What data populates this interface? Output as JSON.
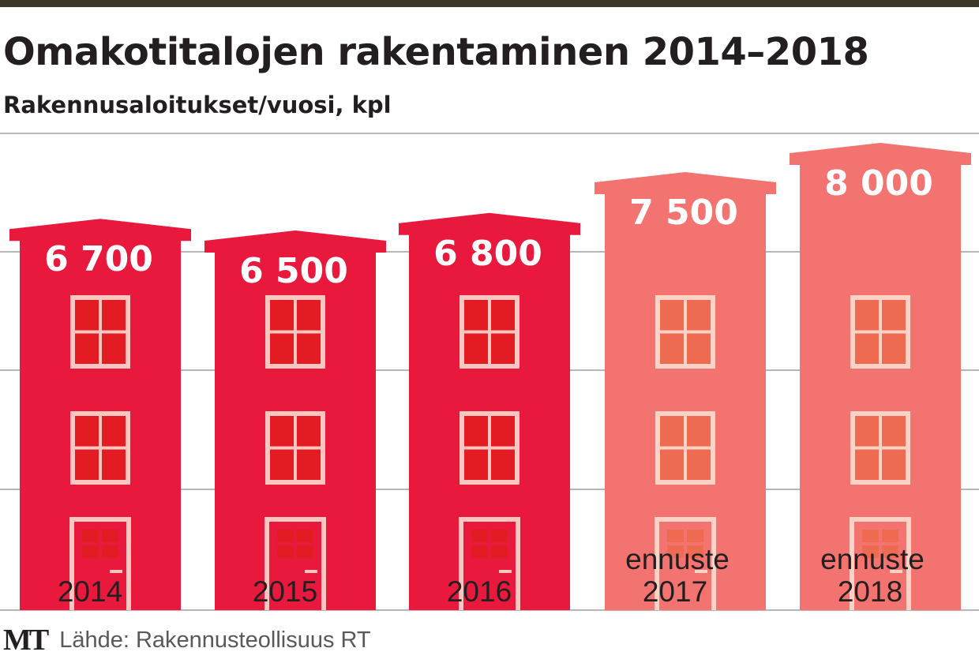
{
  "title": "Omakotitalojen rakentaminen 2014–2018",
  "subtitle": "Rakennusaloitukset/vuosi, kpl",
  "source": {
    "logo": "MT",
    "text": "Lähde: Rakennusteollisuus RT"
  },
  "colors": {
    "actual": "#e8193c",
    "forecast": "#f2736f",
    "window_actual": "#f9c7c0",
    "window_forecast": "#fbd3c6",
    "pane_actual": "#e31b23",
    "pane_forecast": "#ee6a50",
    "grid": "#b6b6b6",
    "top_bar": "#3b3626"
  },
  "chart_data": {
    "type": "bar",
    "title": "Omakotitalojen rakentaminen 2014–2018",
    "subtitle": "Rakennusaloitukset/vuosi, kpl",
    "categories": [
      "2014",
      "2015",
      "2016",
      "2017",
      "2018"
    ],
    "values": [
      6700,
      6500,
      6800,
      7500,
      8000
    ],
    "value_labels": [
      "6 700",
      "6 500",
      "6 800",
      "7 500",
      "8 000"
    ],
    "forecast": [
      false,
      false,
      false,
      true,
      true
    ],
    "forecast_labels": [
      "",
      "",
      "",
      "ennuste",
      "ennuste"
    ],
    "xlabel": "",
    "ylabel": "",
    "ylim": [
      0,
      8000
    ],
    "grid": true
  }
}
